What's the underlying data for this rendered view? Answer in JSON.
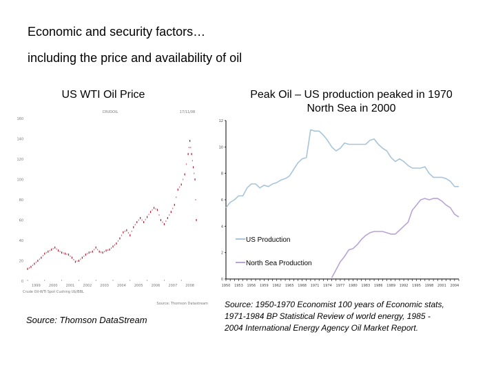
{
  "slide": {
    "heading_line1": "Economic and security factors…",
    "heading_line2": "including the price and availability of oil"
  },
  "left_panel": {
    "title": "US WTI Oil Price",
    "source": "Source: Thomson DataStream"
  },
  "right_panel": {
    "title_line1": "Peak Oil – US production peaked in 1970",
    "title_line2": "North Sea in 2000",
    "source_line1": "Source: 1950-1970 Economist 100 years of Economic stats,",
    "source_line2": "1971-1984 BP Statistical Review of world energy, 1985 -",
    "source_line3": "2004 International Energy Agency Oil Market Report."
  },
  "chart_data": [
    {
      "type": "scatter",
      "title": "CRUDOIL",
      "date_stamp": "17/11/08",
      "footer_left": "Crude Oil-WTI Spot Cushing U$/BBL",
      "footer_right": "Source: Thomson Datastream",
      "xlabel": "",
      "ylabel": "",
      "xlim": [
        1999,
        2009
      ],
      "ylim": [
        0,
        160
      ],
      "y_ticks": [
        0,
        20,
        40,
        60,
        80,
        100,
        120,
        140,
        160
      ],
      "x_ticks": [
        "1999",
        "2000",
        "2001",
        "2002",
        "2003",
        "2004",
        "2005",
        "2006",
        "2007",
        "2008"
      ],
      "color": "#b0182e",
      "x": [
        1999.0,
        1999.2,
        1999.4,
        1999.6,
        1999.8,
        2000.0,
        2000.2,
        2000.4,
        2000.6,
        2000.8,
        2001.0,
        2001.2,
        2001.4,
        2001.6,
        2001.8,
        2002.0,
        2002.2,
        2002.4,
        2002.6,
        2002.8,
        2003.0,
        2003.2,
        2003.4,
        2003.6,
        2003.8,
        2004.0,
        2004.2,
        2004.4,
        2004.6,
        2004.8,
        2005.0,
        2005.2,
        2005.4,
        2005.6,
        2005.8,
        2006.0,
        2006.2,
        2006.4,
        2006.6,
        2006.8,
        2007.0,
        2007.2,
        2007.4,
        2007.6,
        2007.8,
        2008.0,
        2008.2,
        2008.4,
        2008.5,
        2008.6,
        2008.7,
        2008.8,
        2008.88
      ],
      "values": [
        12,
        14,
        17,
        20,
        23,
        27,
        29,
        31,
        33,
        30,
        28,
        27,
        26,
        23,
        19,
        20,
        23,
        26,
        28,
        29,
        33,
        29,
        28,
        30,
        31,
        34,
        37,
        42,
        48,
        50,
        45,
        53,
        58,
        62,
        58,
        63,
        68,
        72,
        70,
        60,
        56,
        62,
        68,
        75,
        90,
        95,
        105,
        125,
        138,
        125,
        112,
        100,
        60
      ]
    },
    {
      "type": "line",
      "title": "",
      "xlabel": "",
      "ylabel": "",
      "xlim": [
        1950,
        2005
      ],
      "ylim": [
        0,
        12
      ],
      "y_ticks": [
        0,
        2,
        4,
        6,
        8,
        10,
        12
      ],
      "categories": [
        "1950",
        "1953",
        "1956",
        "1959",
        "1962",
        "1965",
        "1968",
        "1971",
        "1974",
        "1977",
        "1980",
        "1983",
        "1986",
        "1989",
        "1992",
        "1995",
        "1998",
        "2001",
        "2004"
      ],
      "legend": "bottom-left",
      "series": [
        {
          "name": "US Production",
          "color": "#a7c4d9",
          "x": [
            1950,
            1951,
            1952,
            1953,
            1954,
            1955,
            1956,
            1957,
            1958,
            1959,
            1960,
            1961,
            1962,
            1963,
            1964,
            1965,
            1966,
            1967,
            1968,
            1969,
            1970,
            1971,
            1972,
            1973,
            1974,
            1975,
            1976,
            1977,
            1978,
            1979,
            1980,
            1981,
            1982,
            1983,
            1984,
            1985,
            1986,
            1987,
            1988,
            1989,
            1990,
            1991,
            1992,
            1993,
            1994,
            1995,
            1996,
            1997,
            1998,
            1999,
            2000,
            2001,
            2002,
            2003,
            2004,
            2005
          ],
          "values": [
            5.4,
            5.8,
            6.0,
            6.3,
            6.3,
            6.9,
            7.2,
            7.2,
            6.9,
            7.1,
            7.0,
            7.2,
            7.3,
            7.5,
            7.6,
            7.8,
            8.3,
            8.8,
            9.1,
            9.2,
            11.3,
            11.2,
            11.2,
            10.9,
            10.5,
            10.0,
            9.7,
            9.9,
            10.3,
            10.2,
            10.2,
            10.2,
            10.2,
            10.2,
            10.5,
            10.6,
            10.2,
            9.9,
            9.7,
            9.2,
            8.9,
            9.1,
            8.9,
            8.6,
            8.4,
            8.4,
            8.4,
            8.5,
            8.0,
            7.7,
            7.7,
            7.7,
            7.6,
            7.4,
            7.0,
            7.0
          ]
        },
        {
          "name": "North Sea Production",
          "color": "#b9a3d6",
          "x": [
            1975,
            1976,
            1977,
            1978,
            1979,
            1980,
            1981,
            1982,
            1983,
            1984,
            1985,
            1986,
            1987,
            1988,
            1989,
            1990,
            1991,
            1992,
            1993,
            1994,
            1995,
            1996,
            1997,
            1998,
            1999,
            2000,
            2001,
            2002,
            2003,
            2004,
            2005
          ],
          "values": [
            0.1,
            0.7,
            1.3,
            1.7,
            2.2,
            2.3,
            2.6,
            3.0,
            3.3,
            3.5,
            3.6,
            3.6,
            3.6,
            3.5,
            3.4,
            3.4,
            3.7,
            4.0,
            4.3,
            5.2,
            5.6,
            6.0,
            6.1,
            6.0,
            6.1,
            6.1,
            5.9,
            5.6,
            5.4,
            4.9,
            4.7
          ]
        }
      ]
    }
  ]
}
